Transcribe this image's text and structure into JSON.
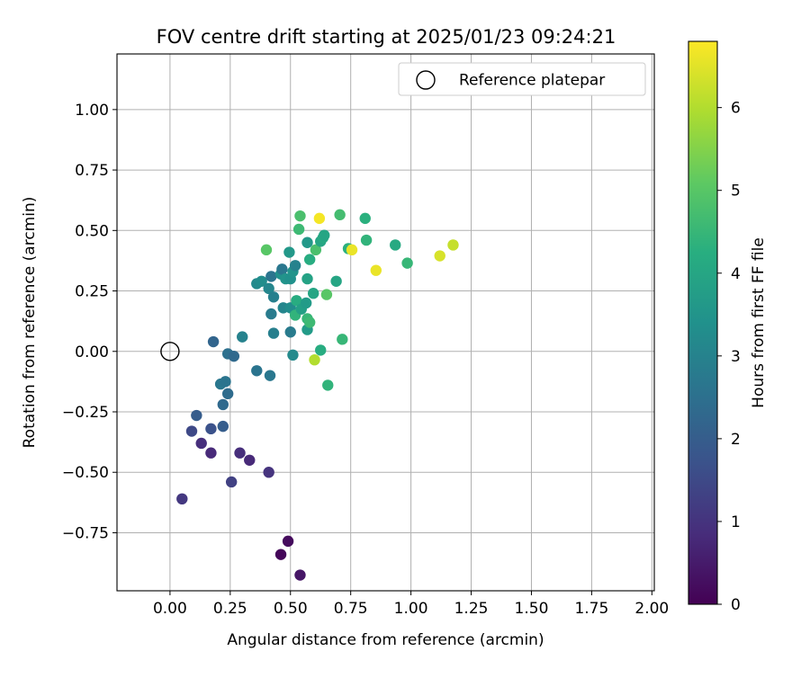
{
  "chart_data": {
    "type": "scatter",
    "title": "FOV centre drift starting at 2025/01/23 09:24:21",
    "xlabel": "Angular distance from reference (arcmin)",
    "ylabel": "Rotation from reference (arcmin)",
    "xlim": [
      -0.22,
      2.01
    ],
    "ylim": [
      -0.99,
      1.23
    ],
    "xticks": [
      "0.00",
      "0.25",
      "0.50",
      "0.75",
      "1.00",
      "1.25",
      "1.50",
      "1.75",
      "2.00"
    ],
    "yticks": [
      "−0.75",
      "−0.50",
      "−0.25",
      "0.00",
      "0.25",
      "0.50",
      "0.75",
      "1.00"
    ],
    "grid": true,
    "legend": {
      "position": "top-right",
      "entries": [
        "Reference platepar"
      ]
    },
    "reference_point": {
      "x": 0.0,
      "y": 0.0
    },
    "colorbar": {
      "label": "Hours from first FF file",
      "range": [
        0,
        6.8
      ],
      "ticks": [
        "0",
        "1",
        "2",
        "3",
        "4",
        "5",
        "6"
      ],
      "colormap": "viridis"
    },
    "points": [
      {
        "x": 0.05,
        "y": -0.61,
        "h": 1.1
      },
      {
        "x": 0.09,
        "y": -0.33,
        "h": 1.5
      },
      {
        "x": 0.11,
        "y": -0.265,
        "h": 2.0
      },
      {
        "x": 0.13,
        "y": -0.38,
        "h": 0.9
      },
      {
        "x": 0.17,
        "y": -0.42,
        "h": 0.8
      },
      {
        "x": 0.17,
        "y": -0.32,
        "h": 1.7
      },
      {
        "x": 0.18,
        "y": 0.04,
        "h": 2.2
      },
      {
        "x": 0.21,
        "y": -0.135,
        "h": 2.7
      },
      {
        "x": 0.22,
        "y": -0.22,
        "h": 2.3
      },
      {
        "x": 0.22,
        "y": -0.31,
        "h": 2.0
      },
      {
        "x": 0.23,
        "y": -0.125,
        "h": 2.6
      },
      {
        "x": 0.24,
        "y": -0.175,
        "h": 2.4
      },
      {
        "x": 0.24,
        "y": -0.01,
        "h": 2.5
      },
      {
        "x": 0.255,
        "y": -0.54,
        "h": 1.3
      },
      {
        "x": 0.265,
        "y": -0.02,
        "h": 2.3
      },
      {
        "x": 0.29,
        "y": -0.42,
        "h": 0.9
      },
      {
        "x": 0.3,
        "y": 0.06,
        "h": 3.0
      },
      {
        "x": 0.33,
        "y": -0.45,
        "h": 0.8
      },
      {
        "x": 0.36,
        "y": -0.08,
        "h": 2.6
      },
      {
        "x": 0.36,
        "y": 0.28,
        "h": 3.2
      },
      {
        "x": 0.38,
        "y": 0.29,
        "h": 3.3
      },
      {
        "x": 0.4,
        "y": 0.42,
        "h": 5.0
      },
      {
        "x": 0.41,
        "y": -0.5,
        "h": 1.0
      },
      {
        "x": 0.41,
        "y": 0.26,
        "h": 3.1
      },
      {
        "x": 0.415,
        "y": -0.1,
        "h": 2.7
      },
      {
        "x": 0.42,
        "y": 0.155,
        "h": 2.8
      },
      {
        "x": 0.42,
        "y": 0.31,
        "h": 2.6
      },
      {
        "x": 0.43,
        "y": 0.225,
        "h": 2.9
      },
      {
        "x": 0.43,
        "y": 0.075,
        "h": 2.9
      },
      {
        "x": 0.46,
        "y": 0.32,
        "h": 3.4
      },
      {
        "x": 0.46,
        "y": -0.84,
        "h": 0.1
      },
      {
        "x": 0.465,
        "y": 0.34,
        "h": 2.7
      },
      {
        "x": 0.47,
        "y": 0.18,
        "h": 3.1
      },
      {
        "x": 0.48,
        "y": 0.3,
        "h": 3.5
      },
      {
        "x": 0.49,
        "y": -0.785,
        "h": 0.2
      },
      {
        "x": 0.495,
        "y": 0.41,
        "h": 3.6
      },
      {
        "x": 0.5,
        "y": 0.18,
        "h": 3.3
      },
      {
        "x": 0.5,
        "y": 0.08,
        "h": 2.8
      },
      {
        "x": 0.5,
        "y": 0.3,
        "h": 3.4
      },
      {
        "x": 0.51,
        "y": 0.33,
        "h": 3.5
      },
      {
        "x": 0.51,
        "y": -0.015,
        "h": 3.2
      },
      {
        "x": 0.52,
        "y": 0.15,
        "h": 4.4
      },
      {
        "x": 0.52,
        "y": 0.355,
        "h": 3.0
      },
      {
        "x": 0.525,
        "y": 0.21,
        "h": 4.2
      },
      {
        "x": 0.535,
        "y": 0.505,
        "h": 4.6
      },
      {
        "x": 0.54,
        "y": 0.56,
        "h": 4.8
      },
      {
        "x": 0.54,
        "y": -0.925,
        "h": 0.4
      },
      {
        "x": 0.545,
        "y": 0.175,
        "h": 3.8
      },
      {
        "x": 0.565,
        "y": 0.2,
        "h": 3.7
      },
      {
        "x": 0.57,
        "y": 0.3,
        "h": 3.9
      },
      {
        "x": 0.57,
        "y": 0.135,
        "h": 4.5
      },
      {
        "x": 0.57,
        "y": 0.45,
        "h": 3.6
      },
      {
        "x": 0.57,
        "y": 0.09,
        "h": 3.7
      },
      {
        "x": 0.58,
        "y": 0.12,
        "h": 4.6
      },
      {
        "x": 0.58,
        "y": 0.38,
        "h": 4.2
      },
      {
        "x": 0.595,
        "y": 0.24,
        "h": 4.0
      },
      {
        "x": 0.6,
        "y": -0.035,
        "h": 6.0
      },
      {
        "x": 0.605,
        "y": 0.42,
        "h": 4.8
      },
      {
        "x": 0.62,
        "y": 0.55,
        "h": 6.7
      },
      {
        "x": 0.625,
        "y": 0.005,
        "h": 4.2
      },
      {
        "x": 0.625,
        "y": 0.455,
        "h": 4.0
      },
      {
        "x": 0.635,
        "y": 0.47,
        "h": 4.1
      },
      {
        "x": 0.64,
        "y": 0.48,
        "h": 4.0
      },
      {
        "x": 0.65,
        "y": 0.235,
        "h": 5.0
      },
      {
        "x": 0.655,
        "y": -0.14,
        "h": 4.4
      },
      {
        "x": 0.69,
        "y": 0.29,
        "h": 4.0
      },
      {
        "x": 0.705,
        "y": 0.565,
        "h": 4.7
      },
      {
        "x": 0.715,
        "y": 0.05,
        "h": 4.5
      },
      {
        "x": 0.74,
        "y": 0.425,
        "h": 4.3
      },
      {
        "x": 0.755,
        "y": 0.42,
        "h": 6.6
      },
      {
        "x": 0.81,
        "y": 0.55,
        "h": 4.3
      },
      {
        "x": 0.815,
        "y": 0.46,
        "h": 4.4
      },
      {
        "x": 0.855,
        "y": 0.335,
        "h": 6.6
      },
      {
        "x": 0.935,
        "y": 0.44,
        "h": 4.1
      },
      {
        "x": 0.985,
        "y": 0.365,
        "h": 4.5
      },
      {
        "x": 1.12,
        "y": 0.395,
        "h": 6.4
      },
      {
        "x": 1.175,
        "y": 0.44,
        "h": 6.2
      }
    ]
  }
}
